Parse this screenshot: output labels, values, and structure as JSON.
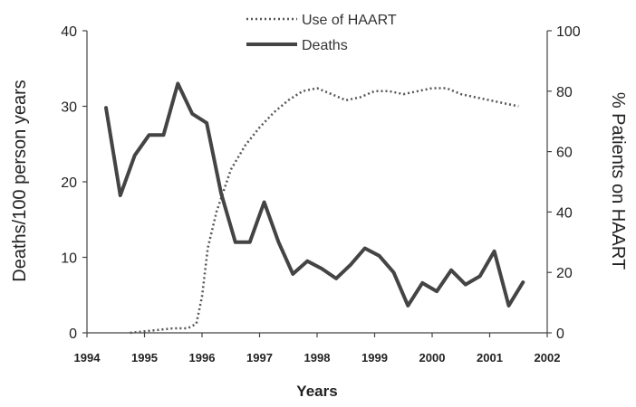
{
  "chart_data": {
    "type": "line",
    "xlabel": "Years",
    "ylabel_left": "Deaths/100 person years",
    "ylabel_right": "% Patients on HAART",
    "xlim": [
      1994,
      2002
    ],
    "ylim_left": [
      0,
      40
    ],
    "ylim_right": [
      0,
      100
    ],
    "x_ticks": [
      "1994",
      "1995",
      "1996",
      "1997",
      "1998",
      "1999",
      "2000",
      "2001",
      "2002"
    ],
    "y_left_ticks": [
      "0",
      "10",
      "20",
      "30",
      "40"
    ],
    "y_right_ticks": [
      "0",
      "20",
      "40",
      "60",
      "80",
      "100"
    ],
    "grid": false,
    "legend_position": "top-center",
    "series": [
      {
        "name": "Use of HAART",
        "axis": "right",
        "style": "dotted",
        "color": "#555555",
        "x": [
          1994.75,
          1995.0,
          1995.25,
          1995.5,
          1995.75,
          1995.9,
          1996.0,
          1996.1,
          1996.25,
          1996.5,
          1996.75,
          1997.0,
          1997.25,
          1997.5,
          1997.75,
          1998.0,
          1998.25,
          1998.5,
          1998.75,
          1999.0,
          1999.25,
          1999.5,
          1999.75,
          2000.0,
          2000.25,
          2000.5,
          2000.75,
          2001.0,
          2001.25,
          2001.5
        ],
        "y": [
          0,
          0.5,
          1,
          1.5,
          1.5,
          3,
          12,
          28,
          40,
          54,
          62,
          68,
          73,
          77,
          80,
          81,
          79,
          77,
          78,
          80,
          80,
          79,
          80,
          81,
          81,
          79,
          78,
          77,
          76,
          75
        ]
      },
      {
        "name": "Deaths",
        "axis": "left",
        "style": "solid",
        "color": "#444444",
        "x": [
          1994.33,
          1994.58,
          1994.83,
          1995.08,
          1995.33,
          1995.58,
          1995.83,
          1996.08,
          1996.33,
          1996.58,
          1996.83,
          1997.08,
          1997.33,
          1997.58,
          1997.83,
          1998.08,
          1998.33,
          1998.58,
          1998.83,
          1999.08,
          1999.33,
          1999.58,
          1999.83,
          2000.08,
          2000.33,
          2000.58,
          2000.83,
          2001.08,
          2001.33,
          2001.58
        ],
        "y": [
          29.8,
          18.2,
          23.5,
          26.2,
          26.2,
          33.0,
          29.0,
          27.8,
          18.5,
          12.0,
          12.0,
          17.3,
          12.0,
          7.8,
          9.5,
          8.5,
          7.2,
          9.0,
          11.2,
          10.2,
          8.0,
          3.6,
          6.6,
          5.5,
          8.3,
          6.4,
          7.5,
          10.8,
          3.6,
          6.7
        ]
      }
    ]
  },
  "colors": {
    "deaths_line": "#444444",
    "haart_line": "#555555",
    "axis": "#444444",
    "text": "#222222"
  }
}
